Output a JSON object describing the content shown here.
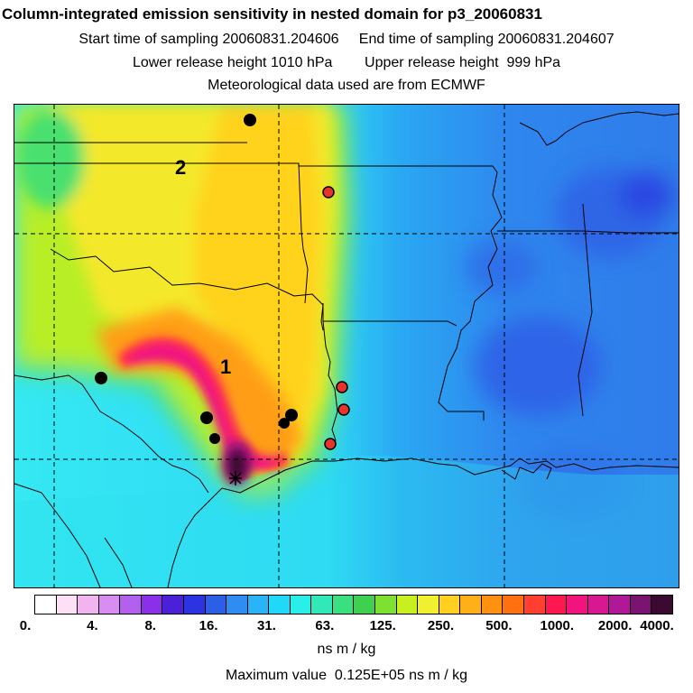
{
  "header": {
    "title": "Column-integrated emission sensitivity in nested domain for p3_20060831",
    "sampling_line": "Start time of sampling 20060831.204606     End time of sampling 20060831.204607",
    "release_line": "Lower release height 1010 hPa        Upper release height  999 hPa",
    "met_line": "Meteorological data used are from ECMWF"
  },
  "map": {
    "cluster_labels": [
      "2",
      "1"
    ],
    "release_marker": "receptor-star-icon",
    "black_point_color": "#000000",
    "red_point_color": "#e8332a",
    "background_low_color": "#3c6ae8",
    "plume_peak_color": "#3a0a30"
  },
  "colorbar": {
    "colors": [
      "#ffffff",
      "#fde0f5",
      "#f2b4ee",
      "#d88ef0",
      "#b460ee",
      "#8c2fe8",
      "#4a20d8",
      "#2b34e0",
      "#2c5fe6",
      "#2f8cf0",
      "#29b4f8",
      "#22d8f8",
      "#28f0e8",
      "#30e8b8",
      "#38e080",
      "#40d050",
      "#7ee030",
      "#c8f020",
      "#f0f030",
      "#ffd020",
      "#ffb018",
      "#ff9010",
      "#ff7010",
      "#ff4030",
      "#ff1850",
      "#f0147c",
      "#d81890",
      "#b01898",
      "#7a1470",
      "#3a0a30"
    ],
    "tick_labels": [
      "0.",
      "4.",
      "8.",
      "16.",
      "31.",
      "63.",
      "125.",
      "250.",
      "500.",
      "1000.",
      "2000.",
      "4000."
    ],
    "units": "ns m / kg"
  },
  "footer": {
    "max_value": "Maximum value  0.125E+05 ns m / kg"
  }
}
